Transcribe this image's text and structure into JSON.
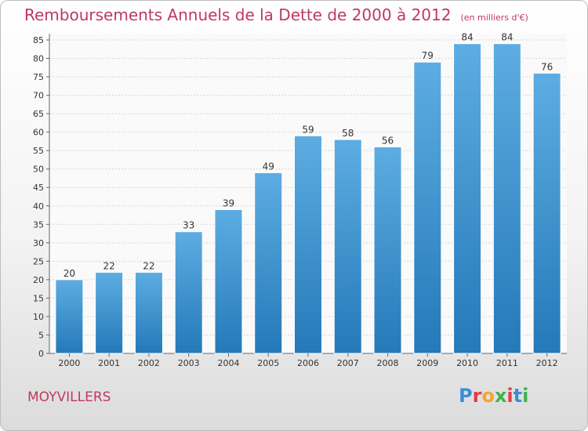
{
  "header": {
    "title": "Remboursements Annuels de la Dette de 2000 à 2012",
    "subtitle": "(en milliers d'€)"
  },
  "footer": {
    "commune": "MOYVILLERS",
    "logo_text": "Proxiti",
    "logo_colors": [
      "#3a8fd6",
      "#e63946",
      "#f4a62a",
      "#3cb44b",
      "#e63946",
      "#3a8fd6",
      "#3cb44b"
    ]
  },
  "colors": {
    "bar_light": "#5dade2",
    "bar_dark": "#2479b8",
    "title": "#c0395d"
  },
  "chart_data": {
    "type": "bar",
    "categories": [
      "2000",
      "2001",
      "2002",
      "2003",
      "2004",
      "2005",
      "2006",
      "2007",
      "2008",
      "2009",
      "2010",
      "2011",
      "2012"
    ],
    "values": [
      20,
      22,
      22,
      33,
      39,
      49,
      59,
      58,
      56,
      79,
      84,
      84,
      76
    ],
    "ylim": [
      0,
      85
    ],
    "yticks": [
      0,
      5,
      10,
      15,
      20,
      25,
      30,
      35,
      40,
      45,
      50,
      55,
      60,
      65,
      70,
      75,
      80,
      85
    ],
    "grid": true
  }
}
